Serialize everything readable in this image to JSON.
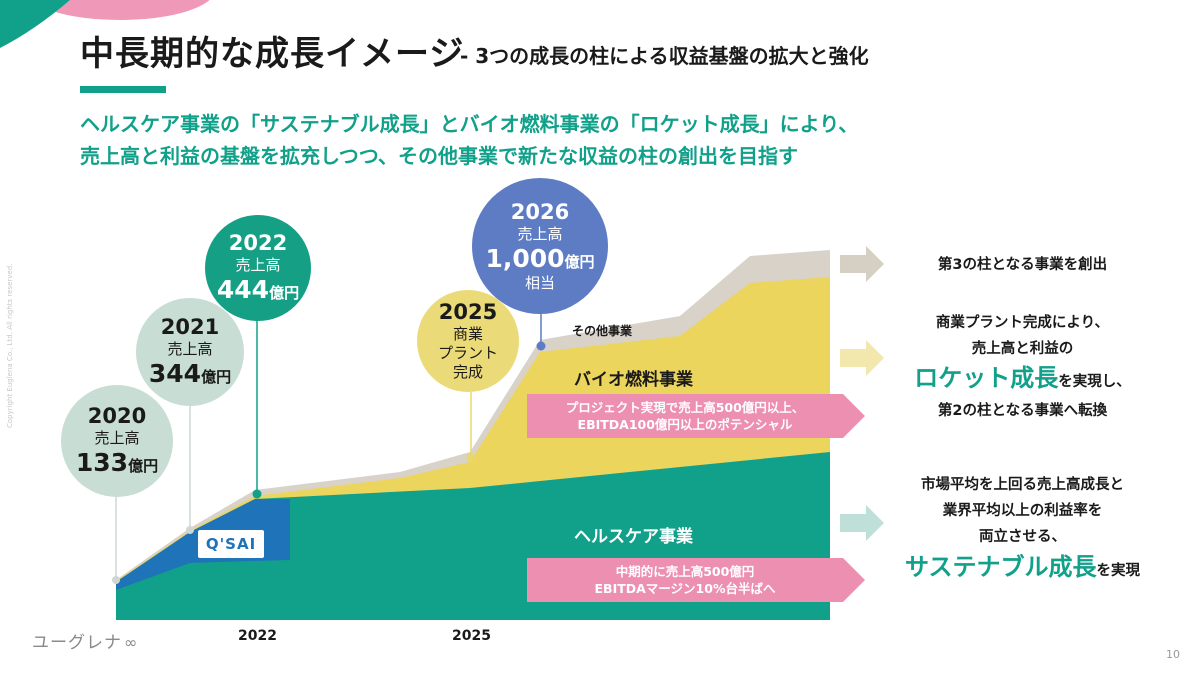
{
  "header": {
    "title": "中長期的な成長イメージ",
    "subtitle": "- 3つの成長の柱による収益基盤の拡大と強化"
  },
  "lead": {
    "line1": "ヘルスケア事業の「サステナブル成長」とバイオ燃料事業の「ロケット成長」により、",
    "line2": "売上高と利益の基盤を拡充しつつ、その他事業で新たな収益の柱の創出を目指す"
  },
  "milestones": [
    {
      "year": "2020",
      "label": "売上高",
      "value": "133",
      "unit": "億円"
    },
    {
      "year": "2021",
      "label": "売上高",
      "value": "344",
      "unit": "億円"
    },
    {
      "year": "2022",
      "label": "売上高",
      "value": "444",
      "unit": "億円"
    },
    {
      "year": "2025",
      "line1": "商業",
      "line2": "プラント",
      "line3": "完成"
    },
    {
      "year": "2026",
      "label": "売上高",
      "value": "1,000",
      "unit": "億円",
      "suffix": "相当"
    }
  ],
  "chart": {
    "labels": {
      "other": "その他事業",
      "bio": "バイオ燃料事業",
      "health": "ヘルスケア事業"
    },
    "brand_badge": "Q'SAI",
    "banners": {
      "bio_line1": "プロジェクト実現で売上高500億円以上、",
      "bio_line2": "EBITDA100億円以上のポテンシャル",
      "health_line1": "中期的に売上高500億円",
      "health_line2": "EBITDAマージン10%台半ばへ"
    },
    "x_axis": [
      "2022",
      "2025"
    ]
  },
  "side": {
    "other": "第3の柱となる事業を創出",
    "bio_line1": "商業プラント完成により、",
    "bio_line2": "売上高と利益の",
    "bio_emph": "ロケット成長",
    "bio_after": "を実現し、",
    "bio_line4": "第2の柱となる事業へ転換",
    "health_line1": "市場平均を上回る売上高成長と",
    "health_line2": "業界平均以上の利益率を",
    "health_line3": "両立させる、",
    "health_emph": "サステナブル成長",
    "health_after": "を実現"
  },
  "footer": {
    "logo": "ユーグレナ",
    "page": "10",
    "copyright": "Copyright Euglena Co., Ltd. All rights reserved."
  },
  "colors": {
    "teal": "#11a08a",
    "yellow": "#ecd55c",
    "gray": "#cfc8bd",
    "pink": "#ec8fb0",
    "blue_circle": "#5d7cc3",
    "mint_circle": "#c8ddd4",
    "dark_teal_circle": "#15a086"
  }
}
